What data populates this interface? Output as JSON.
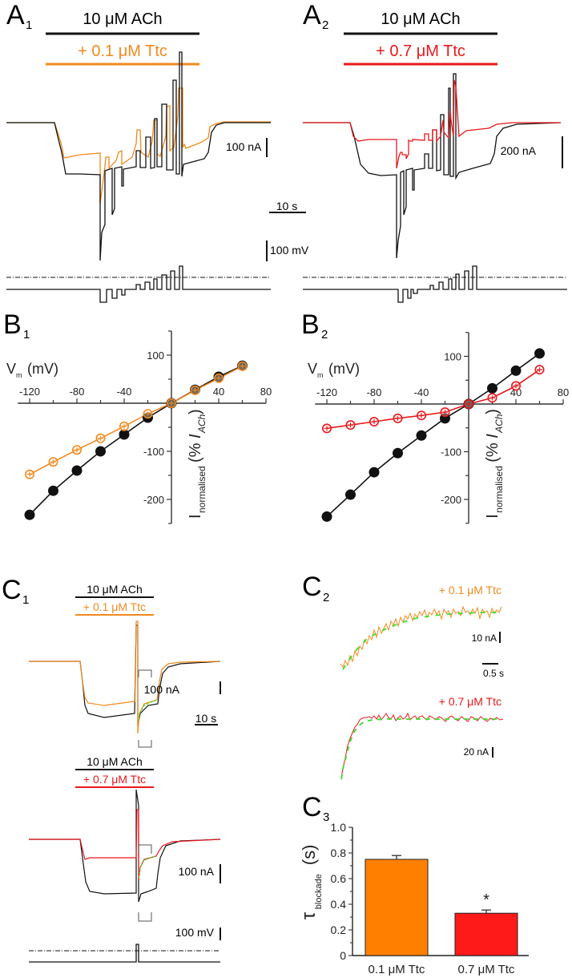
{
  "colors": {
    "black": "#111111",
    "orange": "#f08a1e",
    "red": "#e8181c",
    "green": "#3ddc2a",
    "bar_orange": "#ff8000",
    "bar_red": "#ff1a1a"
  },
  "panels": {
    "A1": {
      "label": "A",
      "sub": "1",
      "drug": "10 μM ACh",
      "tox": "+ 0.1 μM Ttc",
      "scale_current": "100 nA",
      "scale_time": "10 s",
      "scale_voltage": "100 mV"
    },
    "A2": {
      "label": "A",
      "sub": "2",
      "drug": "10 μM ACh",
      "tox": "+ 0.7 μM Ttc",
      "scale_current": "200 nA"
    },
    "B1": {
      "label": "B",
      "sub": "1"
    },
    "B2": {
      "label": "B",
      "sub": "2"
    },
    "C1": {
      "label": "C",
      "sub": "1",
      "top_drug": "10 μM ACh",
      "top_tox": "+ 0.1 μM Ttc",
      "top_scale_current": "100 nA",
      "scale_time": "10 s",
      "bottom_drug": "10 μM ACh",
      "bottom_tox": "+ 0.7 μM Ttc",
      "bottom_scale_current": "100 nA",
      "scale_voltage": "100 mV"
    },
    "C2": {
      "label": "C",
      "sub": "2",
      "top_label": "+ 0.1 μM Ttc",
      "top_scale_current": "10 nA",
      "scale_time": "0.5 s",
      "bottom_label": "+ 0.7 μM Ttc",
      "bottom_scale_current": "20 nA"
    },
    "C3": {
      "label": "C",
      "sub": "3"
    }
  },
  "chart_data": [
    {
      "id": "B1",
      "type": "line",
      "xlabel": "V",
      "xlabel_sub": "m",
      "xlabel_unit": "(mV)",
      "ylabel": "I",
      "ylabel_sub": "normalised",
      "ylabel_unit_pre": "(% ",
      "ylabel_unit_i": "I",
      "ylabel_unit_isub": "ACh",
      "ylabel_unit_post": ")",
      "xlim": [
        -130,
        80
      ],
      "ylim": [
        -250,
        150
      ],
      "xticks": [
        -120,
        -80,
        -40,
        0,
        40,
        80
      ],
      "yticks": [
        100,
        -100,
        -200
      ],
      "x": [
        -120,
        -100,
        -80,
        -60,
        -40,
        -20,
        0,
        20,
        40,
        60
      ],
      "series": [
        {
          "name": "10 μM ACh",
          "color": "black",
          "marker": "filled",
          "values": [
            -232,
            -182,
            -140,
            -100,
            -65,
            -30,
            0,
            28,
            55,
            78
          ]
        },
        {
          "name": "+ 0.1 μM Ttc",
          "color": "orange",
          "marker": "open",
          "values": [
            -148,
            -122,
            -97,
            -73,
            -48,
            -22,
            0,
            27,
            52,
            77
          ]
        }
      ]
    },
    {
      "id": "B2",
      "type": "line",
      "xlabel": "V",
      "xlabel_sub": "m",
      "xlabel_unit": "(mV)",
      "ylabel": "I",
      "ylabel_sub": "normalised",
      "ylabel_unit_pre": "(% ",
      "ylabel_unit_i": "I",
      "ylabel_unit_isub": "ACh",
      "ylabel_unit_post": ")",
      "xlim": [
        -130,
        80
      ],
      "ylim": [
        -250,
        150
      ],
      "xticks": [
        -120,
        -80,
        -40,
        0,
        40,
        80
      ],
      "yticks": [
        100,
        -100,
        -200
      ],
      "x": [
        -120,
        -100,
        -80,
        -60,
        -40,
        -20,
        0,
        20,
        40,
        60
      ],
      "series": [
        {
          "name": "10 μM ACh",
          "color": "black",
          "marker": "filled",
          "values": [
            -236,
            -190,
            -143,
            -103,
            -66,
            -30,
            0,
            33,
            70,
            106
          ]
        },
        {
          "name": "+ 0.7 μM Ttc",
          "color": "red",
          "marker": "open",
          "values": [
            -51,
            -44,
            -37,
            -30,
            -24,
            -17,
            0,
            13,
            38,
            72
          ]
        }
      ]
    },
    {
      "id": "C3",
      "type": "bar",
      "categories": [
        "0.1 μM Ttc",
        "0.7 μM Ttc"
      ],
      "values": [
        0.75,
        0.33
      ],
      "errors": [
        0.03,
        0.025
      ],
      "bar_colors": [
        "bar_orange",
        "bar_red"
      ],
      "significance": [
        "",
        "*"
      ],
      "ylabel": "τ",
      "ylabel_sub": "blockade",
      "ylabel_unit": "(s)",
      "ylim": [
        0,
        1.0
      ],
      "yticks": [
        "0",
        "0.2",
        "0.4",
        "0.6",
        "0.8",
        "1.0"
      ]
    }
  ]
}
